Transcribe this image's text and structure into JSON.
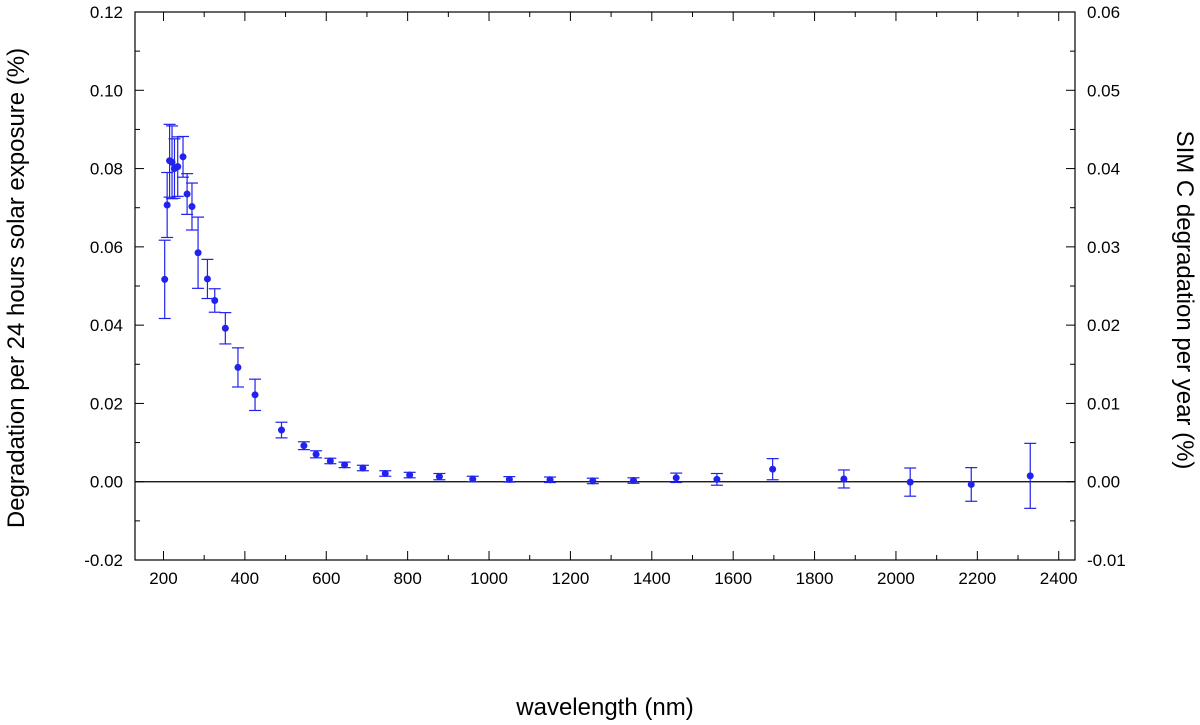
{
  "chart_data": {
    "type": "scatter",
    "title": "",
    "xlabel": "wavelength (nm)",
    "ylabel": "Degradation per 24 hours solar exposure (%)",
    "y2label": "SIM C degradation per year (%)",
    "xlim": [
      130,
      2440
    ],
    "ylim": [
      -0.02,
      0.12
    ],
    "y2lim": [
      -0.01,
      0.06
    ],
    "xticks": [
      200,
      400,
      600,
      800,
      1000,
      1200,
      1400,
      1600,
      1800,
      2000,
      2200,
      2400
    ],
    "yticks": [
      -0.02,
      0.0,
      0.02,
      0.04,
      0.06,
      0.08,
      0.1,
      0.12
    ],
    "y2ticks": [
      -0.01,
      0.0,
      0.01,
      0.02,
      0.03,
      0.04,
      0.05,
      0.06
    ],
    "xtick_labels": [
      "200",
      "400",
      "600",
      "800",
      "1000",
      "1200",
      "1400",
      "1600",
      "1800",
      "2000",
      "2200",
      "2400"
    ],
    "ytick_labels": [
      "-0.02",
      "0.00",
      "0.02",
      "0.04",
      "0.06",
      "0.08",
      "0.10",
      "0.12"
    ],
    "y2tick_labels": [
      "-0.01",
      "0.00",
      "0.01",
      "0.02",
      "0.03",
      "0.04",
      "0.05",
      "0.06"
    ],
    "zero_line": true,
    "grid": false,
    "color": "#2222ee",
    "series": [
      {
        "points": [
          {
            "x": 203,
            "y": 0.0517,
            "err": 0.01
          },
          {
            "x": 209,
            "y": 0.0707,
            "err": 0.0083
          },
          {
            "x": 215,
            "y": 0.082,
            "err": 0.0093
          },
          {
            "x": 221,
            "y": 0.0816,
            "err": 0.0093
          },
          {
            "x": 227,
            "y": 0.08,
            "err": 0.0076
          },
          {
            "x": 235,
            "y": 0.0805,
            "err": 0.0076
          },
          {
            "x": 248,
            "y": 0.083,
            "err": 0.0052
          },
          {
            "x": 258,
            "y": 0.0735,
            "err": 0.0052
          },
          {
            "x": 270,
            "y": 0.0703,
            "err": 0.006
          },
          {
            "x": 285,
            "y": 0.0585,
            "err": 0.0091
          },
          {
            "x": 308,
            "y": 0.0518,
            "err": 0.005
          },
          {
            "x": 326,
            "y": 0.0463,
            "err": 0.003
          },
          {
            "x": 352,
            "y": 0.0392,
            "err": 0.004
          },
          {
            "x": 383,
            "y": 0.0292,
            "err": 0.005
          },
          {
            "x": 425,
            "y": 0.0222,
            "err": 0.004
          },
          {
            "x": 490,
            "y": 0.0132,
            "err": 0.002
          },
          {
            "x": 545,
            "y": 0.0092,
            "err": 0.001
          },
          {
            "x": 575,
            "y": 0.007,
            "err": 0.0009
          },
          {
            "x": 610,
            "y": 0.0053,
            "err": 0.0007
          },
          {
            "x": 645,
            "y": 0.0043,
            "err": 0.0007
          },
          {
            "x": 690,
            "y": 0.0035,
            "err": 0.0007
          },
          {
            "x": 745,
            "y": 0.0021,
            "err": 0.0007
          },
          {
            "x": 805,
            "y": 0.0017,
            "err": 0.0007
          },
          {
            "x": 878,
            "y": 0.0013,
            "err": 0.0008
          },
          {
            "x": 960,
            "y": 0.0007,
            "err": 0.0007
          },
          {
            "x": 1050,
            "y": 0.0006,
            "err": 0.0007
          },
          {
            "x": 1150,
            "y": 0.0005,
            "err": 0.0007
          },
          {
            "x": 1255,
            "y": 0.0002,
            "err": 0.0007
          },
          {
            "x": 1355,
            "y": 0.0003,
            "err": 0.0007
          },
          {
            "x": 1460,
            "y": 0.001,
            "err": 0.0012
          },
          {
            "x": 1560,
            "y": 0.0006,
            "err": 0.0015
          },
          {
            "x": 1697,
            "y": 0.0032,
            "err": 0.0027
          },
          {
            "x": 1872,
            "y": 0.0007,
            "err": 0.0023
          },
          {
            "x": 2035,
            "y": -0.0001,
            "err": 0.0036
          },
          {
            "x": 2185,
            "y": -0.0007,
            "err": 0.0043
          },
          {
            "x": 2330,
            "y": 0.0015,
            "err": 0.0083
          }
        ]
      }
    ]
  }
}
